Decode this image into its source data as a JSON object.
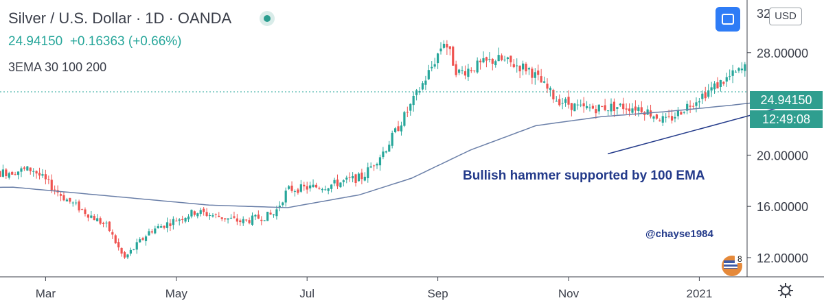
{
  "header": {
    "title": "Silver / U.S. Dollar · 1D · OANDA",
    "price": "24.94150",
    "change": "+0.16363 (+0.66%)",
    "indicator": "3EMA 30 100 200"
  },
  "toolbar": {
    "currency": "USD"
  },
  "price_tag": {
    "last": "24.94150",
    "countdown": "12:49:08"
  },
  "colors": {
    "up": "#26a69a",
    "down": "#ef5350",
    "ema": "#6a7fa8",
    "annotation": "#233a8a",
    "tag": "#2f9e8f"
  },
  "icons": {
    "status": "status-dot-icon",
    "fullscreen": "fullscreen-icon",
    "settings": "gear-icon",
    "avatar": "flag-avatar-icon"
  },
  "badge": "8",
  "chart_data": {
    "type": "candlestick",
    "symbol": "Silver / U.S. Dollar",
    "interval": "1D",
    "ylim": [
      10.5,
      32
    ],
    "y_ticks": [
      "12.00000",
      "16.00000",
      "20.00000",
      "28.00000"
    ],
    "y_tick_values": [
      12,
      16,
      20,
      28
    ],
    "y_tick_partial": "32",
    "x_ticks": [
      "Mar",
      "May",
      "Jul",
      "Sep",
      "Nov",
      "2021"
    ],
    "x_tick_months": [
      2,
      4,
      6,
      8,
      10,
      12
    ],
    "price_path": [
      [
        0,
        17.9
      ],
      [
        1.8,
        18.9
      ],
      [
        2.3,
        16.6
      ],
      [
        2.95,
        14.4
      ],
      [
        3.2,
        11.9
      ],
      [
        3.6,
        14.1
      ],
      [
        4.3,
        15.6
      ],
      [
        5.0,
        14.8
      ],
      [
        5.5,
        15.4
      ],
      [
        5.7,
        17.3
      ],
      [
        6.3,
        17.6
      ],
      [
        6.85,
        18.3
      ],
      [
        7.2,
        20.5
      ],
      [
        7.6,
        24.0
      ],
      [
        7.9,
        26.8
      ],
      [
        8.1,
        29.0
      ],
      [
        8.3,
        26.4
      ],
      [
        8.9,
        27.5
      ],
      [
        9.4,
        26.7
      ],
      [
        9.8,
        24.4
      ],
      [
        10.2,
        23.6
      ],
      [
        10.8,
        23.8
      ],
      [
        11.1,
        23.7
      ],
      [
        11.5,
        22.6
      ],
      [
        11.9,
        24.2
      ],
      [
        12.4,
        25.9
      ],
      [
        12.9,
        27.4
      ],
      [
        13.35,
        25.2
      ],
      [
        13.55,
        24.94
      ]
    ],
    "ema100_path": [
      [
        0,
        17.4
      ],
      [
        1.5,
        17.5
      ],
      [
        3.0,
        16.8
      ],
      [
        4.5,
        16.1
      ],
      [
        5.7,
        15.9
      ],
      [
        6.8,
        16.9
      ],
      [
        7.6,
        18.2
      ],
      [
        8.5,
        20.4
      ],
      [
        9.5,
        22.3
      ],
      [
        10.5,
        23.0
      ],
      [
        11.5,
        23.4
      ],
      [
        12.5,
        23.9
      ],
      [
        13.55,
        24.5
      ]
    ],
    "last_price": 24.9415,
    "annotation": {
      "text": "Bullish hammer supported by 100 EMA",
      "from": [
        10.6,
        20.1
      ],
      "to": [
        13.5,
        24.1
      ]
    },
    "watermark": "@chayse1984"
  }
}
